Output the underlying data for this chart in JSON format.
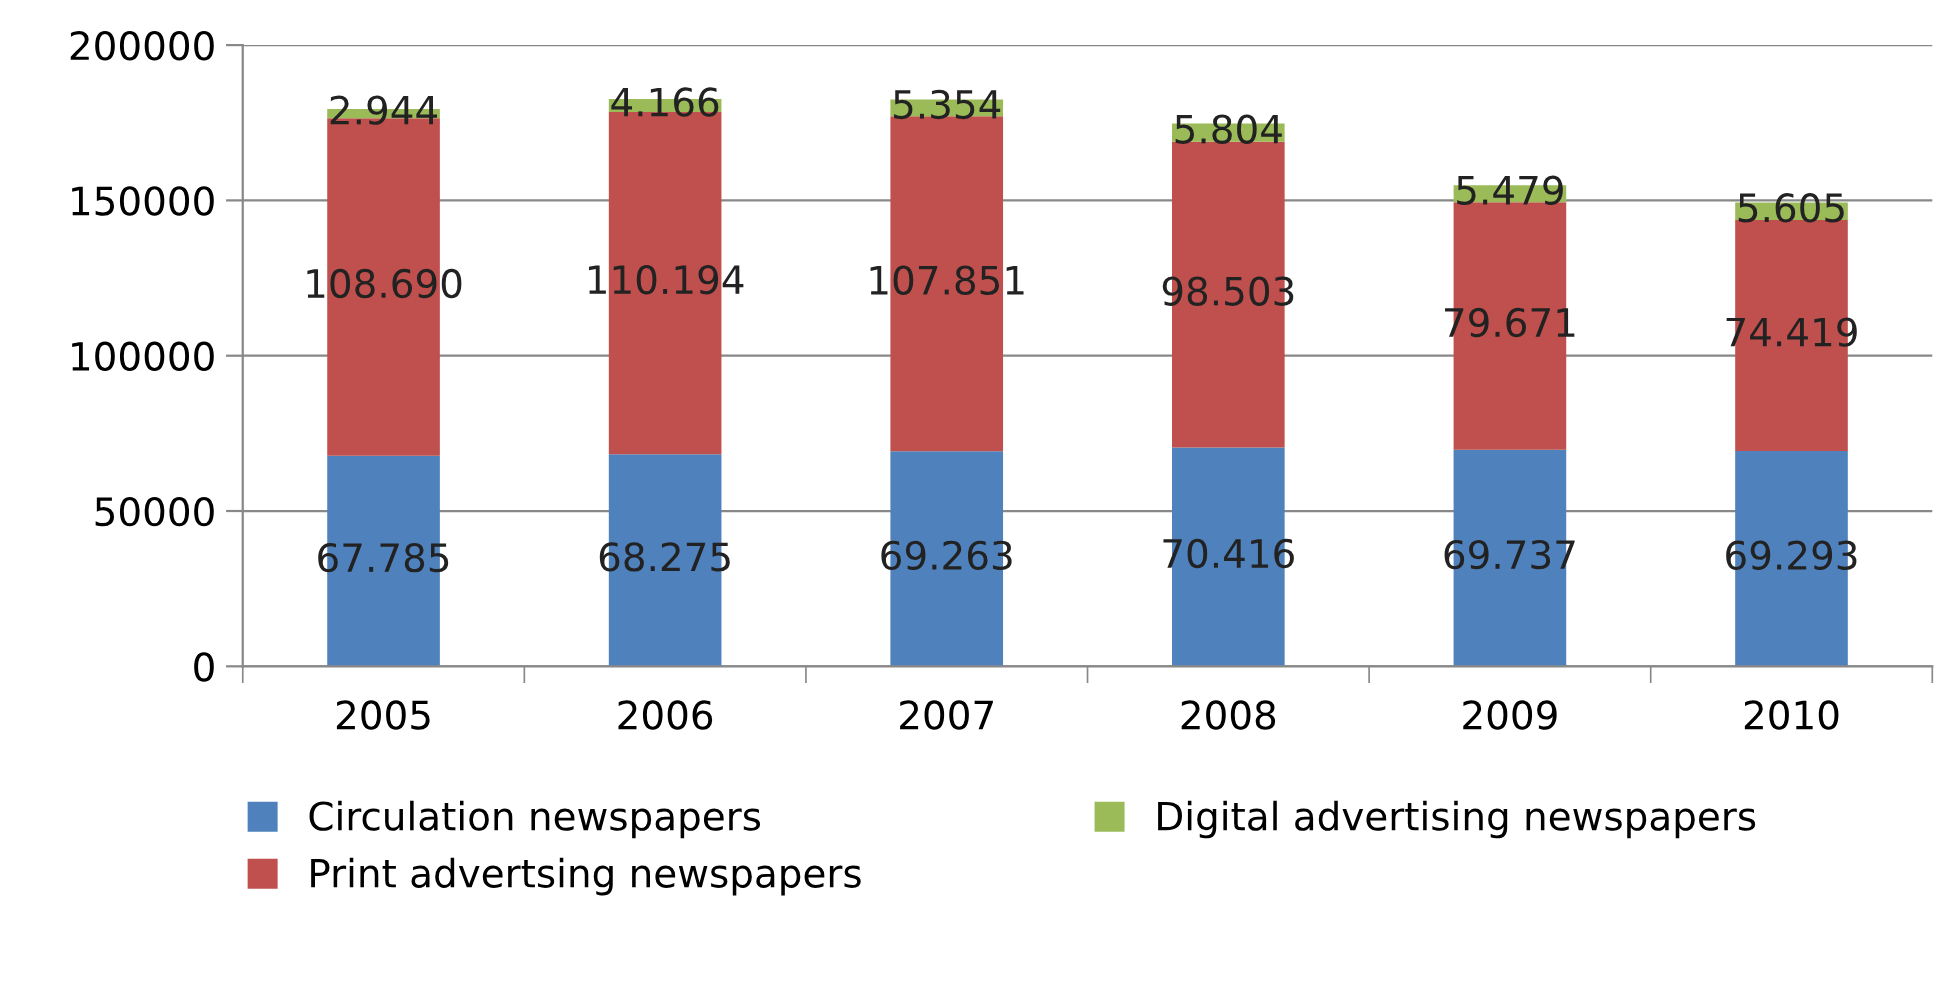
{
  "chart_data": {
    "type": "bar",
    "stacked": true,
    "categories": [
      "2005",
      "2006",
      "2007",
      "2008",
      "2009",
      "2010"
    ],
    "series": [
      {
        "name": "Circulation newspapers",
        "color": "#4f81bd",
        "values": [
          67785,
          68275,
          69263,
          70416,
          69737,
          69293
        ],
        "value_labels": [
          "67.785",
          "68.275",
          "69.263",
          "70.416",
          "69.737",
          "69.293"
        ]
      },
      {
        "name": "Print advertsing newspapers",
        "color": "#c0504d",
        "values": [
          108690,
          110194,
          107851,
          98503,
          79671,
          74419
        ],
        "value_labels": [
          "108.690",
          "110.194",
          "107.851",
          "98.503",
          "79.671",
          "74.419"
        ]
      },
      {
        "name": "Digital advertising newspapers",
        "color": "#9bbb59",
        "values": [
          2944,
          4166,
          5354,
          5804,
          5479,
          5605
        ],
        "value_labels": [
          "2.944",
          "4.166",
          "5.354",
          "5.804",
          "5.479",
          "5.605"
        ]
      }
    ],
    "ylim": [
      0,
      200000
    ],
    "yticks": [
      0,
      50000,
      100000,
      150000,
      200000
    ],
    "grid": "y",
    "legend": "bottom"
  }
}
